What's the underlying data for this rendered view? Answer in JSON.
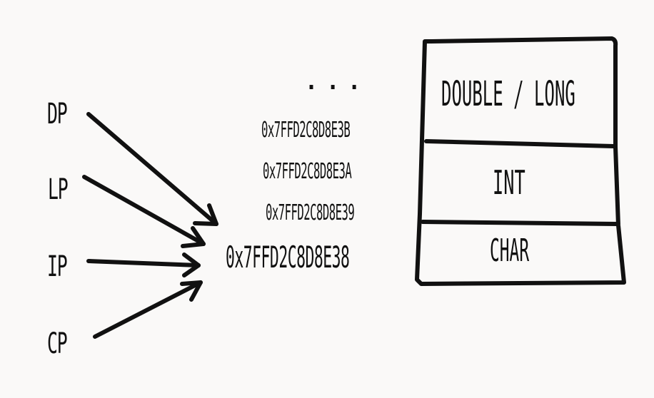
{
  "pointers": [
    {
      "id": "dp",
      "label": "DP"
    },
    {
      "id": "lp",
      "label": "LP"
    },
    {
      "id": "ip",
      "label": "IP"
    },
    {
      "id": "cp",
      "label": "CP"
    }
  ],
  "ellipsis": "...",
  "addresses": [
    "0x7FFD2C8D8E3B",
    "0x7FFD2C8D8E3A",
    "0x7FFD2C8D8E39",
    "0x7FFD2C8D8E38"
  ],
  "memory_cells": [
    {
      "id": "double-long",
      "label": "DOUBLE / LONG"
    },
    {
      "id": "int",
      "label": "INT"
    },
    {
      "id": "char",
      "label": "CHAR"
    }
  ],
  "colors": {
    "stroke": "#111111",
    "background": "#faf9f8"
  }
}
